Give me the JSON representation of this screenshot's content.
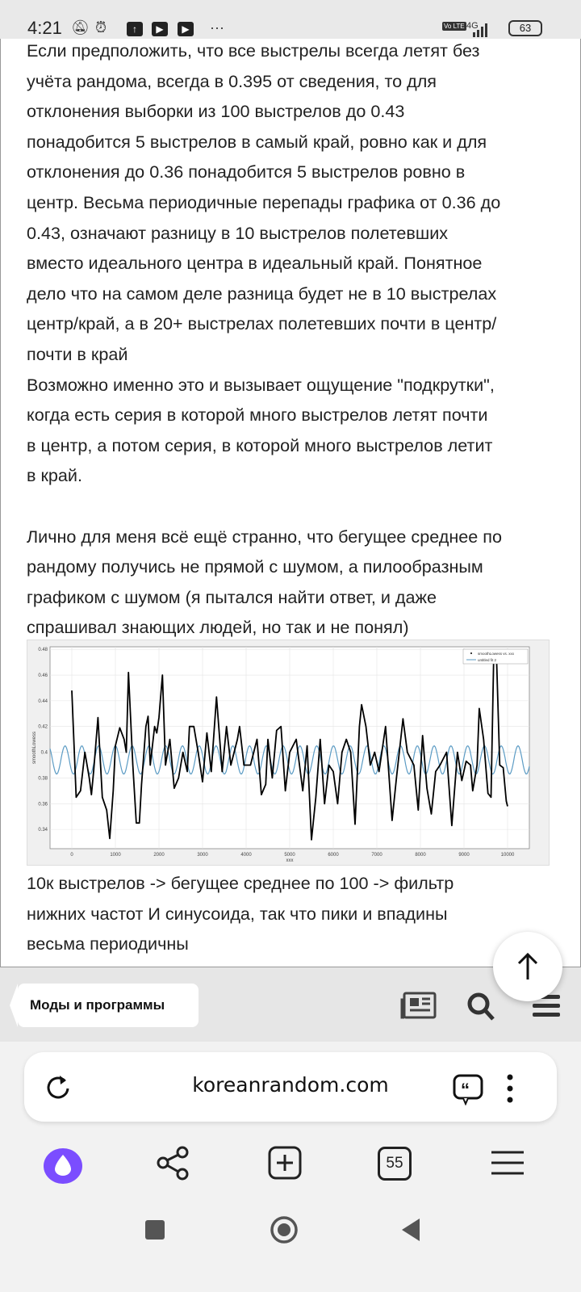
{
  "status_bar": {
    "time": "4:21",
    "network": "4G",
    "volte": "Vo LTE",
    "battery": "63",
    "icons": [
      "bell-off-icon",
      "alarm-icon",
      "upload-icon",
      "youtube-icon",
      "youtube-icon",
      "more-icon"
    ]
  },
  "post": {
    "lines": [
      "Если предположить, что все выстрелы всегда летят без",
      "учёта рандома, всегда в 0.395 от сведения, то для",
      "отклонения выборки из 100 выстрелов до 0.43",
      "понадобится 5 выстрелов в самый край, ровно как и для",
      "отклонения до 0.36 понадобится 5 выстрелов ровно в",
      "центр. Весьма периодичные перепады графика от 0.36 до",
      "0.43, означают разницу в 10 выстрелов полетевших",
      "вместо идеального центра в идеальный край. Понятное",
      "дело что на самом деле разница будет не в 10 выстрелах",
      "центр/край, а в 20+ выстрелах полетевших почти в центр/",
      "почти в край",
      "Возможно именно это и вызывает ощущение \"подкрутки\",",
      "когда  есть серия в которой много выстрелов летят почти",
      "в центр, а потом серия, в которой много выстрелов летит",
      "в край.",
      "",
      "Лично для меня всё ещё странно, что бегущее среднее по",
      "рандому получись не прямой с шумом, а пилообразным",
      "графиком с шумом (я пытался найти ответ, и даже",
      "спрашивал знающих людей, но так и не понял)"
    ],
    "caption": [
      "10к выстрелов -> бегущее среднее по 100 -> фильтр",
      "нижних частот И синусоида, так что пики и впадины",
      "весьма периодичны"
    ]
  },
  "chart_data": {
    "type": "line",
    "xlabel": "xxx",
    "ylabel": "smoothLowess",
    "xlim": [
      -500,
      10500
    ],
    "ylim": [
      0.325,
      0.482
    ],
    "xticks": [
      "0",
      "1000",
      "2000",
      "3000",
      "4000",
      "5000",
      "6000",
      "7000",
      "8000",
      "9000",
      "10000"
    ],
    "yticks": [
      "0.34",
      "0.36",
      "0.38",
      "0.4",
      "0.42",
      "0.44",
      "0.46",
      "0.48"
    ],
    "grid": true,
    "legend_position": "top-right",
    "series": [
      {
        "name": "smoothLowess vs. xxx",
        "color": "#000000",
        "x": [
          0,
          100,
          200,
          300,
          400,
          450,
          500,
          600,
          700,
          800,
          870,
          950,
          1000,
          1100,
          1200,
          1250,
          1300,
          1400,
          1480,
          1550,
          1600,
          1700,
          1750,
          1800,
          1900,
          1950,
          2000,
          2080,
          2150,
          2250,
          2350,
          2450,
          2550,
          2650,
          2700,
          2800,
          2900,
          3000,
          3100,
          3200,
          3320,
          3450,
          3550,
          3650,
          3800,
          3850,
          3950,
          4100,
          4250,
          4350,
          4450,
          4500,
          4600,
          4700,
          4800,
          4900,
          5000,
          5150,
          5300,
          5400,
          5500,
          5600,
          5700,
          5800,
          5900,
          6000,
          6100,
          6200,
          6300,
          6400,
          6500,
          6600,
          6650,
          6750,
          6850,
          6950,
          7050,
          7200,
          7350,
          7450,
          7600,
          7700,
          7850,
          7950,
          8050,
          8150,
          8250,
          8350,
          8450,
          8600,
          8720,
          8850,
          8950,
          9050,
          9150,
          9200,
          9300,
          9350,
          9450,
          9550,
          9620,
          9680,
          9750,
          9820,
          9900,
          9970,
          10000
        ],
        "y": [
          0.448,
          0.365,
          0.37,
          0.4,
          0.38,
          0.367,
          0.385,
          0.427,
          0.365,
          0.355,
          0.333,
          0.37,
          0.405,
          0.419,
          0.41,
          0.4,
          0.462,
          0.39,
          0.345,
          0.345,
          0.375,
          0.42,
          0.428,
          0.39,
          0.42,
          0.415,
          0.427,
          0.46,
          0.39,
          0.41,
          0.372,
          0.38,
          0.4,
          0.385,
          0.42,
          0.42,
          0.4,
          0.377,
          0.415,
          0.385,
          0.443,
          0.385,
          0.42,
          0.39,
          0.41,
          0.42,
          0.39,
          0.39,
          0.41,
          0.367,
          0.375,
          0.41,
          0.38,
          0.417,
          0.42,
          0.37,
          0.4,
          0.41,
          0.37,
          0.405,
          0.332,
          0.365,
          0.41,
          0.36,
          0.39,
          0.385,
          0.36,
          0.4,
          0.41,
          0.4,
          0.344,
          0.42,
          0.437,
          0.42,
          0.39,
          0.4,
          0.385,
          0.42,
          0.347,
          0.38,
          0.426,
          0.4,
          0.39,
          0.355,
          0.413,
          0.372,
          0.352,
          0.385,
          0.39,
          0.4,
          0.343,
          0.4,
          0.378,
          0.393,
          0.39,
          0.37,
          0.39,
          0.434,
          0.41,
          0.368,
          0.365,
          0.47,
          0.47,
          0.39,
          0.388,
          0.362,
          0.358
        ]
      },
      {
        "name": "untitled fit 2",
        "color": "#5b9bc4",
        "type": "sine",
        "offset": 0.394,
        "amplitude": 0.011,
        "period": 385,
        "peak_at": 230
      }
    ]
  },
  "fab": {
    "icon": "arrow-up-icon"
  },
  "breadcrumb": {
    "label": "Моды и программы",
    "icons": [
      "news-icon",
      "search-icon",
      "menu-icon"
    ]
  },
  "address_bar": {
    "url": "koreanrandom.com"
  },
  "bottom_nav": {
    "tabs_count": "55",
    "accent": "#7b4dff"
  }
}
